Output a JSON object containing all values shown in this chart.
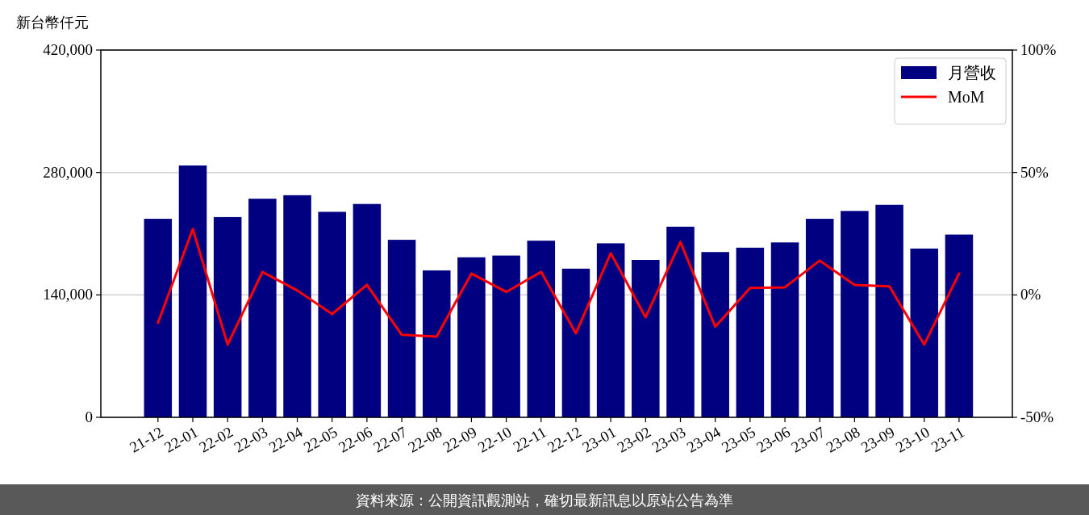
{
  "chart_data": {
    "type": "bar",
    "ylabel": "新台幣仟元",
    "categories": [
      "21-12",
      "22-01",
      "22-02",
      "22-03",
      "22-04",
      "22-05",
      "22-06",
      "22-07",
      "22-08",
      "22-09",
      "22-10",
      "22-11",
      "22-12",
      "23-01",
      "23-02",
      "23-03",
      "23-04",
      "23-05",
      "23-06",
      "23-07",
      "23-08",
      "23-09",
      "23-10",
      "23-11"
    ],
    "series": [
      {
        "name": "月營收",
        "color": "#000080",
        "values": [
          227000,
          288000,
          229000,
          250000,
          254000,
          235000,
          244000,
          203000,
          168000,
          183000,
          185000,
          202000,
          170000,
          199000,
          180000,
          218000,
          189000,
          194000,
          200000,
          227000,
          236000,
          243000,
          193000,
          209000
        ]
      },
      {
        "name": "MoM",
        "type": "line",
        "axis": "y2",
        "color": "#ff0000",
        "values": [
          -11.4,
          26.9,
          -20.3,
          9.4,
          1.8,
          -7.8,
          4.1,
          -16.3,
          -17,
          8.7,
          1.2,
          9.4,
          -15.7,
          17,
          -9.1,
          21.6,
          -13,
          2.8,
          3.1,
          14,
          4.1,
          3.5,
          -20.3,
          8.7
        ]
      }
    ],
    "ylim": [
      0,
      420000
    ],
    "yticks": [
      {
        "value": 0,
        "label": "0"
      },
      {
        "value": 140000,
        "label": "140,000"
      },
      {
        "value": 280000,
        "label": "280,000"
      },
      {
        "value": 420000,
        "label": "420,000"
      }
    ],
    "y2lim": [
      -50,
      100
    ],
    "y2ticks": [
      {
        "value": -50,
        "label": "-50%"
      },
      {
        "value": 0,
        "label": "0%"
      },
      {
        "value": 50,
        "label": "50%"
      },
      {
        "value": 100,
        "label": "100%"
      }
    ],
    "grid": "y",
    "legend": "top right",
    "annotations": [
      "資料來源：公開資訊觀測站，確切最新訊息以原站公告為準"
    ]
  }
}
